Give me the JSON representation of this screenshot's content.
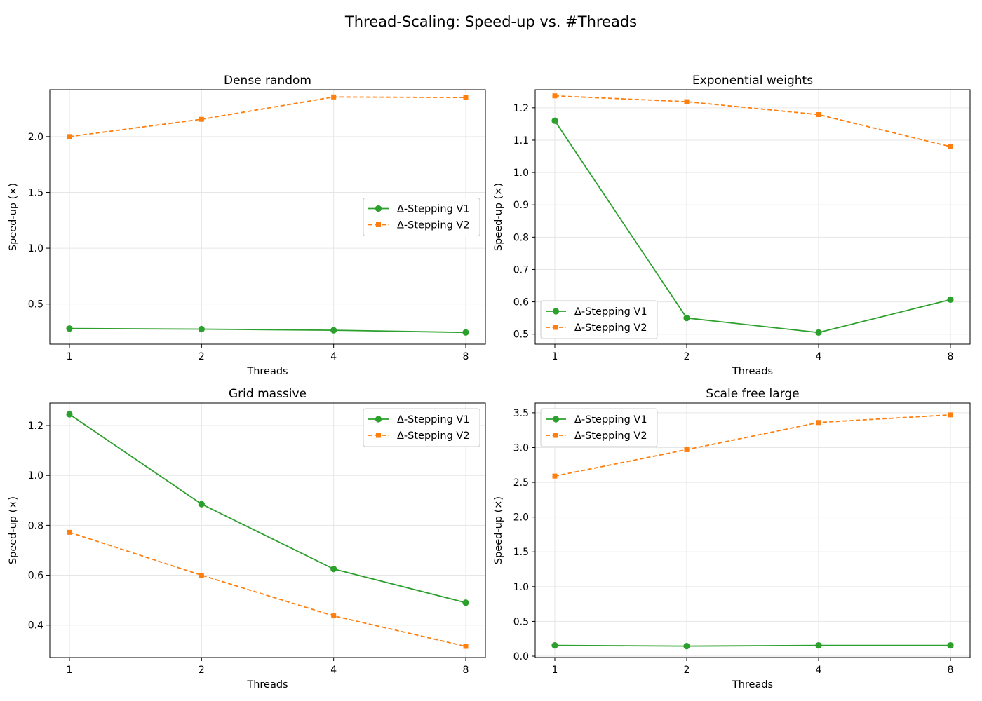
{
  "figure": {
    "title": "Thread-Scaling: Speed-up vs. #Threads"
  },
  "colors": {
    "v1": "#2ca02c",
    "v2": "#ff7f0e",
    "grid": "#e6e6e6",
    "axis": "#000000"
  },
  "chart_data": [
    {
      "type": "line",
      "title": "Dense random",
      "xlabel": "Threads",
      "ylabel": "Speed-up (×)",
      "x": [
        1,
        2,
        4,
        8
      ],
      "x_tick_labels": [
        "1",
        "2",
        "4",
        "8"
      ],
      "x_scale": "log2",
      "ylim": [
        0.14,
        2.42
      ],
      "y_ticks": [
        0.5,
        1.0,
        1.5,
        2.0
      ],
      "y_tick_labels": [
        "0.5",
        "1.0",
        "1.5",
        "2.0"
      ],
      "grid": true,
      "legend": "center-right",
      "series": [
        {
          "name": "Δ-Stepping V1",
          "values": [
            0.28,
            0.275,
            0.265,
            0.245
          ],
          "style": "solid",
          "marker": "circle",
          "color_key": "v1"
        },
        {
          "name": "Δ-Stepping V2",
          "values": [
            2.0,
            2.155,
            2.355,
            2.35
          ],
          "style": "dashed",
          "marker": "square",
          "color_key": "v2"
        }
      ]
    },
    {
      "type": "line",
      "title": "Exponential weights",
      "xlabel": "Threads",
      "ylabel": "Speed-up (×)",
      "x": [
        1,
        2,
        4,
        8
      ],
      "x_tick_labels": [
        "1",
        "2",
        "4",
        "8"
      ],
      "x_scale": "log2",
      "ylim": [
        0.469,
        1.256
      ],
      "y_ticks": [
        0.5,
        0.6,
        0.7,
        0.8,
        0.9,
        1.0,
        1.1,
        1.2
      ],
      "y_tick_labels": [
        "0.5",
        "0.6",
        "0.7",
        "0.8",
        "0.9",
        "1.0",
        "1.1",
        "1.2"
      ],
      "grid": true,
      "legend": "lower-left",
      "series": [
        {
          "name": "Δ-Stepping V1",
          "values": [
            1.16,
            0.55,
            0.505,
            0.607
          ],
          "style": "solid",
          "marker": "circle",
          "color_key": "v1"
        },
        {
          "name": "Δ-Stepping V2",
          "values": [
            1.237,
            1.219,
            1.179,
            1.08
          ],
          "style": "dashed",
          "marker": "square",
          "color_key": "v2"
        }
      ]
    },
    {
      "type": "line",
      "title": "Grid massive",
      "xlabel": "Threads",
      "ylabel": "Speed-up (×)",
      "x": [
        1,
        2,
        4,
        8
      ],
      "x_tick_labels": [
        "1",
        "2",
        "4",
        "8"
      ],
      "x_scale": "log2",
      "ylim": [
        0.27,
        1.29
      ],
      "y_ticks": [
        0.4,
        0.6,
        0.8,
        1.0,
        1.2
      ],
      "y_tick_labels": [
        "0.4",
        "0.6",
        "0.8",
        "1.0",
        "1.2"
      ],
      "grid": true,
      "legend": "upper-right",
      "series": [
        {
          "name": "Δ-Stepping V1",
          "values": [
            1.245,
            0.885,
            0.625,
            0.49
          ],
          "style": "solid",
          "marker": "circle",
          "color_key": "v1"
        },
        {
          "name": "Δ-Stepping V2",
          "values": [
            0.772,
            0.6,
            0.437,
            0.315
          ],
          "style": "dashed",
          "marker": "square",
          "color_key": "v2"
        }
      ]
    },
    {
      "type": "line",
      "title": "Scale free large",
      "xlabel": "Threads",
      "ylabel": "Speed-up (×)",
      "x": [
        1,
        2,
        4,
        8
      ],
      "x_tick_labels": [
        "1",
        "2",
        "4",
        "8"
      ],
      "x_scale": "log2",
      "ylim": [
        -0.02,
        3.64
      ],
      "y_ticks": [
        0.0,
        0.5,
        1.0,
        1.5,
        2.0,
        2.5,
        3.0,
        3.5
      ],
      "y_tick_labels": [
        "0.0",
        "0.5",
        "1.0",
        "1.5",
        "2.0",
        "2.5",
        "3.0",
        "3.5"
      ],
      "grid": true,
      "legend": "upper-left",
      "series": [
        {
          "name": "Δ-Stepping V1",
          "values": [
            0.155,
            0.145,
            0.155,
            0.155
          ],
          "style": "solid",
          "marker": "circle",
          "color_key": "v1"
        },
        {
          "name": "Δ-Stepping V2",
          "values": [
            2.59,
            2.97,
            3.36,
            3.47
          ],
          "style": "dashed",
          "marker": "square",
          "color_key": "v2"
        }
      ]
    }
  ]
}
